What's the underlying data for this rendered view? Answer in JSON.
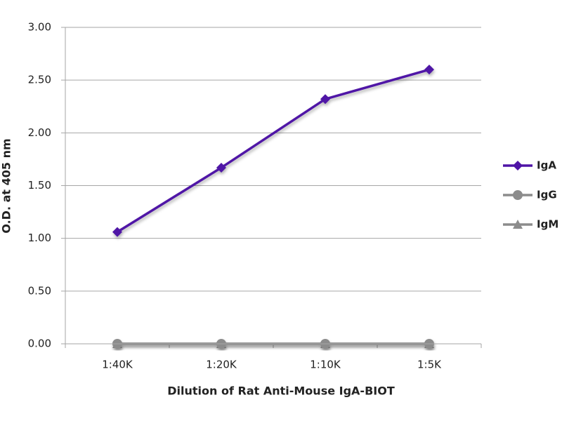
{
  "chart_data": {
    "type": "line",
    "x_label": "Dilution of Rat Anti-Mouse IgA-BIOT",
    "y_label": "O.D. at 405 nm",
    "categories": [
      "1:40K",
      "1:20K",
      "1:10K",
      "1:5K"
    ],
    "series": [
      {
        "name": "IgA",
        "color": "#4f14a6",
        "marker": "diamond",
        "values": [
          1.06,
          1.67,
          2.32,
          2.6
        ]
      },
      {
        "name": "IgG",
        "color": "#8c8c8c",
        "marker": "circle",
        "values": [
          0,
          0,
          0,
          0
        ]
      },
      {
        "name": "IgM",
        "color": "#8c8c8c",
        "marker": "triangle",
        "values": [
          0,
          0,
          0,
          0
        ]
      }
    ],
    "ylim": [
      0,
      3
    ],
    "yticks": [
      {
        "value": 0,
        "label": "0.00"
      },
      {
        "value": 0.5,
        "label": "0.50"
      },
      {
        "value": 1,
        "label": "1.00"
      },
      {
        "value": 1.5,
        "label": "1.50"
      },
      {
        "value": 2,
        "label": "2.00"
      },
      {
        "value": 2.5,
        "label": "2.50"
      },
      {
        "value": 3,
        "label": "3.00"
      }
    ],
    "grid": true,
    "legend": "right"
  }
}
